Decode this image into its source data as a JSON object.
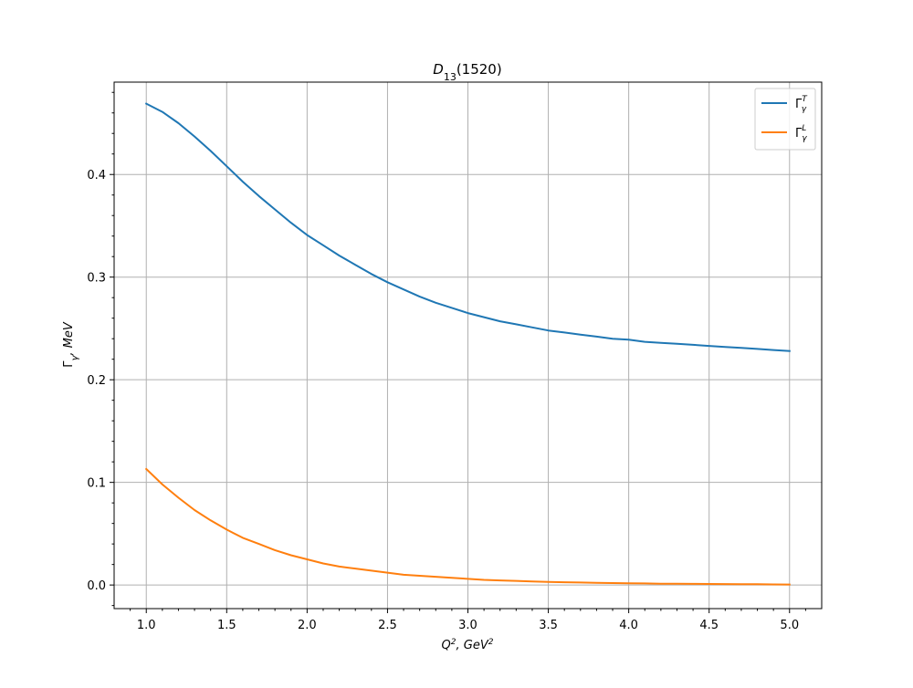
{
  "chart_data": {
    "type": "line",
    "title": "D13(1520)",
    "title_parts": {
      "main": "D",
      "sub": "13",
      "rest": "(1520)"
    },
    "xlabel": "Q², GeV²",
    "xlabel_parts": {
      "a": "Q",
      "a_sup": "2",
      "b": ", GeV",
      "b_sup": "2"
    },
    "ylabel": "Γγ, MeV",
    "ylabel_parts": {
      "a": "Γ",
      "a_sub": "γ",
      "b": ", MeV"
    },
    "xlim": [
      0.8,
      5.2
    ],
    "ylim": [
      -0.023,
      0.49
    ],
    "xticks": [
      1.0,
      1.5,
      2.0,
      2.5,
      3.0,
      3.5,
      4.0,
      4.5,
      5.0
    ],
    "xtick_labels": [
      "1.0",
      "1.5",
      "2.0",
      "2.5",
      "3.0",
      "3.5",
      "4.0",
      "4.5",
      "5.0"
    ],
    "yticks": [
      0.0,
      0.1,
      0.2,
      0.3,
      0.4
    ],
    "ytick_labels": [
      "0.0",
      "0.1",
      "0.2",
      "0.3",
      "0.4"
    ],
    "grid": true,
    "legend_position": "top-right",
    "x": [
      1.0,
      1.1,
      1.2,
      1.3,
      1.4,
      1.5,
      1.6,
      1.7,
      1.8,
      1.9,
      2.0,
      2.1,
      2.2,
      2.3,
      2.4,
      2.5,
      2.6,
      2.7,
      2.8,
      2.9,
      3.0,
      3.1,
      3.2,
      3.3,
      3.4,
      3.5,
      3.6,
      3.7,
      3.8,
      3.9,
      4.0,
      4.1,
      4.2,
      4.3,
      4.4,
      4.5,
      4.6,
      4.7,
      4.8,
      4.9,
      5.0
    ],
    "series": [
      {
        "name": "Γγ^T",
        "name_parts": {
          "base": "Γ",
          "sup": "T",
          "sub": "γ"
        },
        "color": "#1f77b4",
        "values": [
          0.469,
          0.461,
          0.45,
          0.437,
          0.423,
          0.408,
          0.393,
          0.379,
          0.366,
          0.353,
          0.341,
          0.331,
          0.321,
          0.312,
          0.303,
          0.295,
          0.288,
          0.281,
          0.275,
          0.27,
          0.265,
          0.261,
          0.257,
          0.254,
          0.251,
          0.248,
          0.246,
          0.244,
          0.242,
          0.24,
          0.239,
          0.237,
          0.236,
          0.235,
          0.234,
          0.233,
          0.232,
          0.231,
          0.23,
          0.229,
          0.228
        ]
      },
      {
        "name": "Γγ^L",
        "name_parts": {
          "base": "Γ",
          "sup": "L",
          "sub": "γ"
        },
        "color": "#ff7f0e",
        "values": [
          0.113,
          0.098,
          0.085,
          0.073,
          0.063,
          0.054,
          0.046,
          0.04,
          0.034,
          0.029,
          0.025,
          0.021,
          0.018,
          0.016,
          0.014,
          0.012,
          0.01,
          0.009,
          0.008,
          0.007,
          0.006,
          0.005,
          0.0045,
          0.004,
          0.0035,
          0.003,
          0.0027,
          0.0024,
          0.0021,
          0.0019,
          0.0017,
          0.0015,
          0.0013,
          0.0012,
          0.0011,
          0.001,
          0.0009,
          0.0008,
          0.0007,
          0.0006,
          0.0005
        ]
      }
    ]
  }
}
